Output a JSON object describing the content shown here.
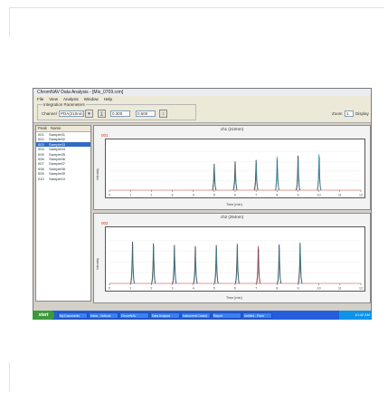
{
  "window": {
    "title": "ChromNAV Data Analysis - [Mix_0709.crm]",
    "menu": [
      "File",
      "View",
      "Analysis",
      "Window",
      "Help"
    ]
  },
  "toolbar": {
    "group_label": "Integration Parameters",
    "field1_label": "Channel",
    "field1_value": "PDA(210nm)",
    "field2_value": "0.300",
    "field3_value": "0.500",
    "zoom_label": "Zoom",
    "zoom_value": "1",
    "display_label": "Display"
  },
  "sidebar": {
    "headers": [
      "Peak",
      "Name"
    ],
    "rows": [
      {
        "id": "001",
        "name": "Sample01"
      },
      {
        "id": "002",
        "name": "Sample02"
      },
      {
        "id": "003",
        "name": "Sample03"
      },
      {
        "id": "004",
        "name": "Sample04"
      },
      {
        "id": "005",
        "name": "Sample05"
      },
      {
        "id": "006",
        "name": "Sample06"
      },
      {
        "id": "007",
        "name": "Sample07"
      },
      {
        "id": "008",
        "name": "Sample08"
      },
      {
        "id": "009",
        "name": "Sample09"
      },
      {
        "id": "010",
        "name": "Sample10"
      }
    ],
    "selected_index": 2
  },
  "panels": [
    {
      "title": "ch1 (210nm)",
      "corner": "001",
      "ytitle": "Intensity",
      "xtitle": "Time [min]",
      "xlim": [
        0,
        12
      ],
      "xticks": [
        "0",
        "1",
        "2",
        "3",
        "4",
        "5",
        "6",
        "7",
        "8",
        "9",
        "10",
        "11",
        "12"
      ],
      "peaks": [
        {
          "x": 5.0,
          "h": 0.55,
          "color": "#444444"
        },
        {
          "x": 6.0,
          "h": 0.6,
          "color": "#444444"
        },
        {
          "x": 7.0,
          "h": 0.63,
          "color": "#444444"
        },
        {
          "x": 8.0,
          "h": 0.7,
          "color": "#3aa0b8"
        },
        {
          "x": 9.0,
          "h": 0.72,
          "color": "#444444"
        },
        {
          "x": 10.0,
          "h": 0.75,
          "color": "#3aa0b8"
        }
      ]
    },
    {
      "title": "ch2 (254nm)",
      "corner": "002",
      "ytitle": "Intensity",
      "xtitle": "Time [min]",
      "xlim": [
        0,
        12
      ],
      "xticks": [
        "0",
        "1",
        "2",
        "3",
        "4",
        "5",
        "6",
        "7",
        "8",
        "9",
        "10",
        "11",
        "12"
      ],
      "peaks": [
        {
          "x": 1.1,
          "h": 0.78,
          "color": "#444444"
        },
        {
          "x": 2.1,
          "h": 0.75,
          "color": "#444444"
        },
        {
          "x": 3.1,
          "h": 0.72,
          "color": "#444444"
        },
        {
          "x": 4.1,
          "h": 0.7,
          "color": "#444444"
        },
        {
          "x": 5.1,
          "h": 0.72,
          "color": "#444444"
        },
        {
          "x": 6.1,
          "h": 0.74,
          "color": "#444444"
        },
        {
          "x": 7.1,
          "h": 0.7,
          "color": "#b4515e"
        },
        {
          "x": 8.1,
          "h": 0.73,
          "color": "#444444"
        },
        {
          "x": 9.1,
          "h": 0.76,
          "color": "#444444"
        }
      ]
    }
  ],
  "taskbar": {
    "start": "start",
    "tasks": [
      "My Documents",
      "Inbox - Outlook",
      "ChromNAV",
      "Data Analysis",
      "Instrument Control",
      "Report",
      "Untitled - Paint"
    ],
    "clock": "10:42 AM"
  },
  "colors": {
    "baseline": "#c0392b",
    "peak_primary": "#444444",
    "peak_secondary": "#3aa0b8",
    "taskbar": "#245edc"
  }
}
